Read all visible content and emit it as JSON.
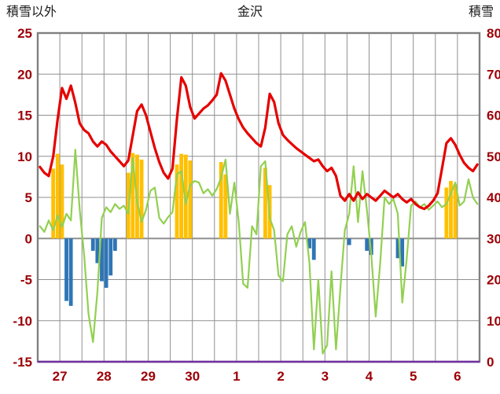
{
  "header": {
    "left_axis_title": "積雪以外",
    "chart_title": "金沢",
    "right_axis_title": "積雪"
  },
  "chart_data": {
    "type": "line",
    "title": "金沢",
    "left_axis_label": "積雪以外",
    "right_axis_label": "積雪",
    "x_tick_labels": [
      "27",
      "28",
      "29",
      "30",
      "1",
      "2",
      "3",
      "4",
      "5",
      "6"
    ],
    "x_range": [
      0,
      10
    ],
    "x_grid_step": 0.5,
    "x_start": 0.05,
    "x_step": 0.1,
    "x_unit": "days (27th through 6th)",
    "left_ylim": [
      -15,
      25
    ],
    "right_ylim": [
      0,
      80
    ],
    "left_ticks": [
      25,
      20,
      15,
      10,
      5,
      0,
      -5,
      -10,
      -15
    ],
    "right_ticks": [
      80,
      70,
      60,
      50,
      40,
      30,
      20,
      10,
      0
    ],
    "grid_on": true,
    "legend": "none",
    "grid_color": "#909090",
    "frame_color": "#808080",
    "tick_color": "#9c0006",
    "series": [
      {
        "name": "orange-bars",
        "type": "bar",
        "axis": "left",
        "color": "#ffc000",
        "values": [
          0,
          0,
          0,
          8.5,
          10.3,
          9.0,
          0,
          0,
          0,
          0,
          0,
          0,
          0,
          0,
          0,
          0,
          0,
          0,
          0,
          0,
          8.0,
          10.4,
          10.2,
          9.6,
          0,
          0,
          0,
          0,
          0,
          0,
          0,
          9.0,
          10.3,
          10.2,
          9.5,
          0,
          0,
          0,
          0,
          0,
          0,
          9.3,
          7.8,
          0,
          0,
          0,
          0,
          0,
          0,
          0,
          0,
          8.6,
          6.5,
          0,
          0,
          0,
          0,
          0,
          0,
          0,
          0,
          0,
          0,
          0,
          0,
          0,
          0,
          0,
          0,
          0,
          0,
          0,
          0,
          0,
          0,
          0,
          0,
          0,
          0,
          0,
          0,
          0,
          0,
          0,
          0,
          0,
          0,
          0,
          0,
          0,
          0,
          0,
          6.2,
          7.0,
          6.6,
          0,
          0,
          0,
          0,
          0
        ]
      },
      {
        "name": "blue-bars",
        "type": "bar",
        "axis": "left",
        "color": "#2e75b6",
        "values": [
          0,
          0,
          0,
          0,
          0,
          0,
          -7.6,
          -8.2,
          0,
          0,
          0,
          0,
          -1.5,
          -3.0,
          -5.2,
          -6.0,
          -4.5,
          -1.5,
          0,
          0,
          0,
          0,
          0,
          0,
          0,
          0,
          0,
          0,
          0,
          0,
          0,
          0,
          0,
          0,
          0,
          0,
          0,
          0,
          0,
          0,
          0,
          0,
          0,
          0,
          0,
          0,
          0,
          0,
          0,
          0,
          0,
          0,
          0,
          0,
          0,
          0,
          0,
          0,
          0,
          0,
          0,
          -1.2,
          -2.6,
          0,
          0,
          0,
          0,
          0,
          0,
          0,
          -0.8,
          0,
          0,
          0,
          -1.5,
          -2.0,
          0,
          0,
          0,
          0,
          0,
          -2.4,
          -3.4,
          0,
          0,
          0,
          0,
          0,
          0,
          0,
          0,
          0,
          0,
          0,
          0,
          0,
          0,
          0,
          0,
          0
        ]
      },
      {
        "name": "green-line",
        "type": "line",
        "axis": "left",
        "color": "#92d050",
        "width": 2.2,
        "values": [
          1.5,
          0.8,
          2.2,
          1.0,
          2.8,
          1.4,
          3.0,
          2.2,
          10.8,
          3.5,
          -2.0,
          -9.2,
          -12.6,
          -6.5,
          2.5,
          3.8,
          3.2,
          4.2,
          3.6,
          4.0,
          3.0,
          9.8,
          4.5,
          2.0,
          3.5,
          5.8,
          6.2,
          2.5,
          1.8,
          2.6,
          3.2,
          7.8,
          8.2,
          4.2,
          6.5,
          7.0,
          6.8,
          5.5,
          6.0,
          5.2,
          6.0,
          7.4,
          9.6,
          3.0,
          6.8,
          2.0,
          -5.5,
          -6.0,
          1.5,
          0.5,
          8.8,
          9.4,
          2.5,
          1.0,
          -4.5,
          -5.2,
          0.5,
          1.5,
          -1.0,
          0.8,
          2.0,
          -3.0,
          -13.5,
          -5.0,
          -14.0,
          -13.0,
          -4.0,
          -13.5,
          -6.0,
          1.0,
          3.0,
          8.8,
          2.0,
          8.2,
          3.5,
          -2.0,
          -9.5,
          -3.0,
          5.0,
          4.2,
          4.8,
          3.0,
          -7.8,
          -2.5,
          4.0,
          4.5,
          3.8,
          4.2,
          3.5,
          4.0,
          4.5,
          3.8,
          4.2,
          5.5,
          6.8,
          4.0,
          4.5,
          7.2,
          5.0,
          4.2
        ]
      },
      {
        "name": "red-line",
        "type": "line",
        "axis": "left",
        "color": "#e60000",
        "width": 3.2,
        "values": [
          8.7,
          8.0,
          7.6,
          10.0,
          14.5,
          18.3,
          17.0,
          18.6,
          16.5,
          14.0,
          13.2,
          12.8,
          11.8,
          11.2,
          11.8,
          11.4,
          10.6,
          10.0,
          9.4,
          8.8,
          9.5,
          12.5,
          15.5,
          16.3,
          15.0,
          13.0,
          11.0,
          9.3,
          8.0,
          7.3,
          8.5,
          14.5,
          19.6,
          18.6,
          16.0,
          14.6,
          15.2,
          15.8,
          16.2,
          16.8,
          17.5,
          20.1,
          19.2,
          17.5,
          15.8,
          14.5,
          13.5,
          12.8,
          12.2,
          11.6,
          11.2,
          13.5,
          17.6,
          16.6,
          14.0,
          12.6,
          12.0,
          11.5,
          11.0,
          10.6,
          10.2,
          9.8,
          9.4,
          9.6,
          8.8,
          8.2,
          8.6,
          7.6,
          5.2,
          4.6,
          5.4,
          4.6,
          5.6,
          4.8,
          5.4,
          5.0,
          4.6,
          5.2,
          5.8,
          5.4,
          5.0,
          5.4,
          4.8,
          4.4,
          4.8,
          4.2,
          3.8,
          3.6,
          4.0,
          4.6,
          5.5,
          8.5,
          11.6,
          12.2,
          11.4,
          10.2,
          9.2,
          8.6,
          8.2,
          9.0
        ]
      },
      {
        "name": "purple-snow-line",
        "label": "積雪",
        "type": "hline",
        "axis": "right",
        "value": 0,
        "color": "#7030a0",
        "width": 2.5
      }
    ]
  }
}
